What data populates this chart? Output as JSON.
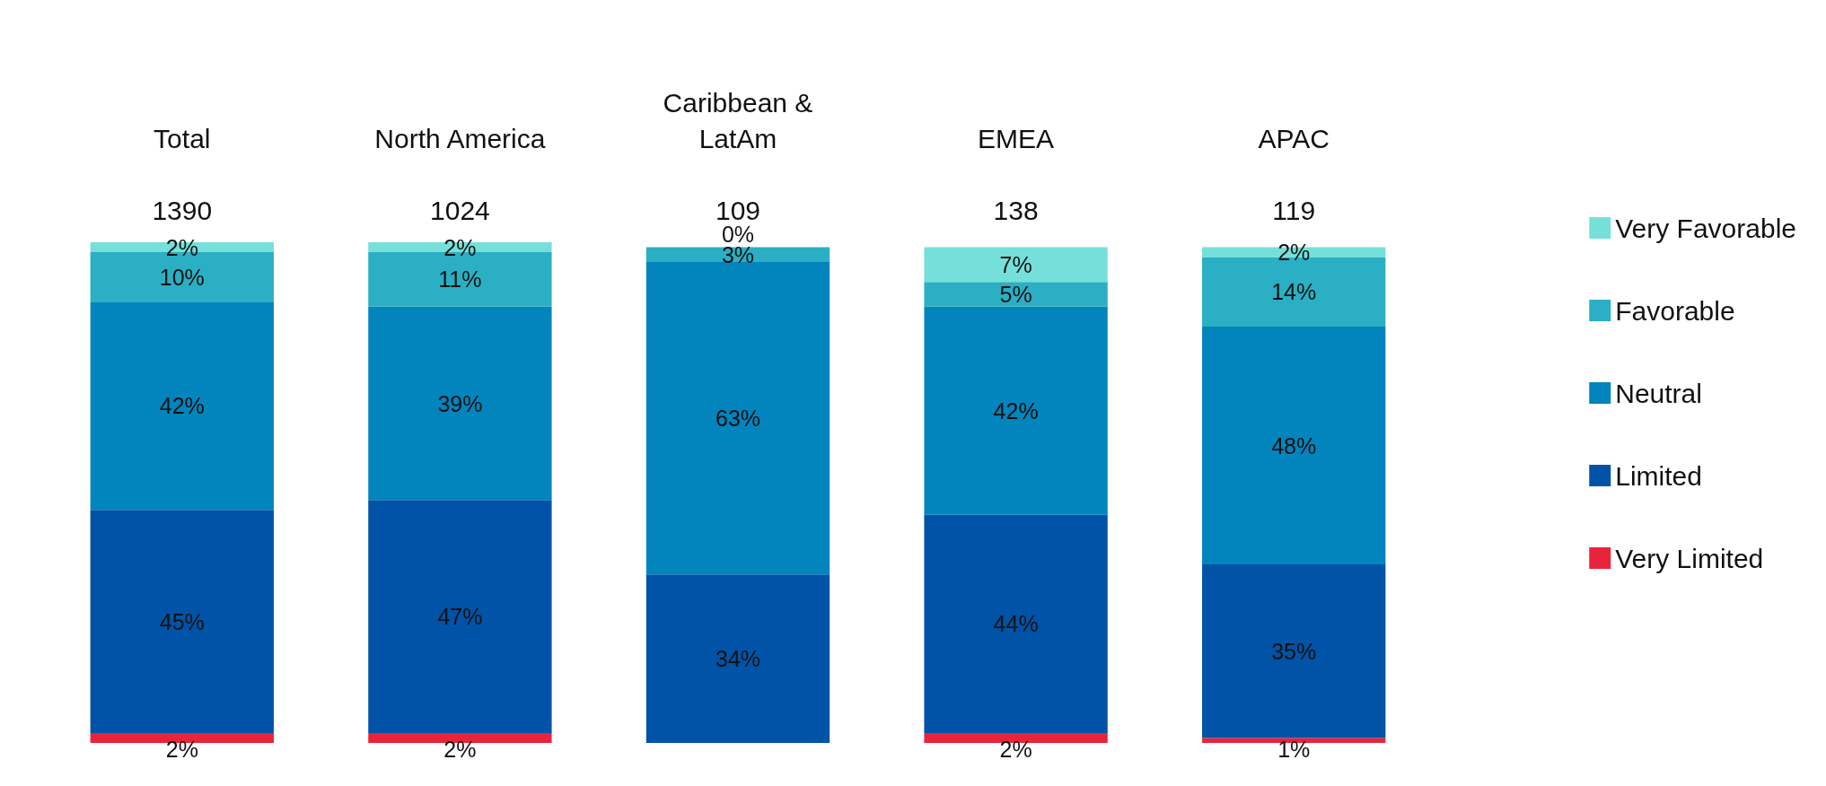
{
  "chart_data": {
    "type": "bar",
    "stacked": true,
    "categories": [
      "Total",
      "North America",
      "Caribbean &\nLatAm",
      "EMEA",
      "APAC"
    ],
    "annotations": [
      "1390",
      "1024",
      "109",
      "138",
      "119"
    ],
    "series": [
      {
        "name": "Very Limited",
        "color": "#e8233c",
        "values": [
          2,
          2,
          0,
          2,
          1
        ],
        "value_labels": [
          "2%",
          "2%",
          null,
          "2%",
          "1%"
        ]
      },
      {
        "name": "Limited",
        "color": "#0053a6",
        "values": [
          45,
          47,
          34,
          44,
          35
        ],
        "value_labels": [
          "45%",
          "47%",
          "34%",
          "44%",
          "35%"
        ]
      },
      {
        "name": "Neutral",
        "color": "#0284bd",
        "values": [
          42,
          39,
          63,
          42,
          48
        ],
        "value_labels": [
          "42%",
          "39%",
          "63%",
          "42%",
          "48%"
        ]
      },
      {
        "name": "Favorable",
        "color": "#2aafc4",
        "values": [
          10,
          11,
          3,
          5,
          14
        ],
        "value_labels": [
          "10%",
          "11%",
          "3%",
          "5%",
          "14%"
        ]
      },
      {
        "name": "Very Favorable",
        "color": "#74e0d9",
        "values": [
          2,
          2,
          0,
          7,
          2
        ],
        "value_labels": [
          "2%",
          "2%",
          "0%",
          "7%",
          "2%"
        ]
      }
    ],
    "legend": "right",
    "grid": false
  }
}
